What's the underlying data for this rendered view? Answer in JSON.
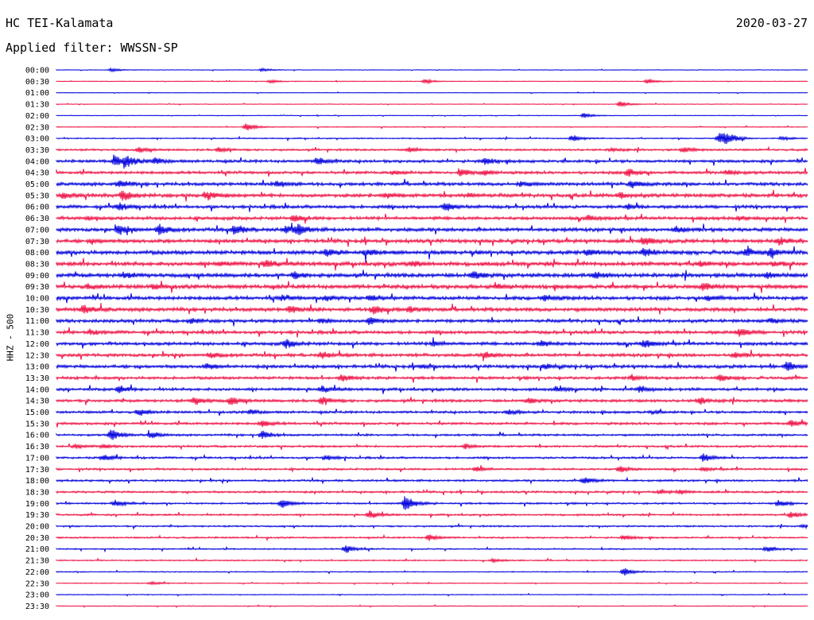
{
  "header": {
    "station": "HC TEI-Kalamata",
    "date": "2020-03-27",
    "filter_label": "Applied filter: WWSSN-SP"
  },
  "colors": {
    "even_trace": "#0000dd",
    "odd_trace": "#ee1144"
  },
  "chart_data": {
    "type": "line",
    "title": "",
    "ylabel": "HHZ - 500",
    "trace_interval_minutes": 30,
    "row_labels": [
      "00:00",
      "00:30",
      "01:00",
      "01:30",
      "02:00",
      "02:30",
      "03:00",
      "03:30",
      "04:00",
      "04:30",
      "05:00",
      "05:30",
      "06:00",
      "06:30",
      "07:00",
      "07:30",
      "08:00",
      "08:30",
      "09:00",
      "09:30",
      "10:00",
      "10:30",
      "11:00",
      "11:30",
      "12:00",
      "12:30",
      "13:00",
      "13:30",
      "14:00",
      "14:30",
      "15:00",
      "15:30",
      "16:00",
      "16:30",
      "17:00",
      "17:30",
      "18:00",
      "18:30",
      "19:00",
      "19:30",
      "20:00",
      "20:30",
      "21:00",
      "21:30",
      "22:00",
      "22:30",
      "23:00",
      "23:30"
    ],
    "noise_level": [
      0.3,
      0.3,
      0.3,
      0.3,
      0.3,
      0.4,
      0.6,
      1.0,
      1.4,
      1.4,
      1.6,
      1.8,
      1.6,
      1.6,
      1.8,
      1.8,
      2.0,
      2.0,
      2.0,
      2.0,
      1.8,
      1.8,
      1.6,
      1.6,
      1.6,
      1.6,
      1.6,
      1.4,
      1.4,
      1.4,
      1.2,
      1.2,
      1.0,
      1.0,
      1.0,
      1.0,
      1.0,
      1.0,
      0.9,
      0.9,
      0.8,
      0.8,
      0.7,
      0.6,
      0.5,
      0.4,
      0.4,
      0.4
    ],
    "events": [
      [
        [
          140,
          2
        ],
        [
          330,
          2
        ]
      ],
      [
        [
          340,
          2
        ],
        [
          535,
          3
        ],
        [
          815,
          3
        ]
      ],
      [],
      [
        [
          780,
          4
        ]
      ],
      [
        [
          735,
          3
        ]
      ],
      [
        [
          310,
          5
        ]
      ],
      [
        [
          720,
          4
        ],
        [
          905,
          8
        ],
        [
          915,
          6
        ],
        [
          985,
          2
        ]
      ],
      [
        [
          175,
          3
        ],
        [
          275,
          3
        ],
        [
          515,
          3
        ],
        [
          770,
          2
        ],
        [
          860,
          3
        ]
      ],
      [
        [
          145,
          7
        ],
        [
          160,
          6
        ],
        [
          195,
          4
        ],
        [
          400,
          5
        ],
        [
          610,
          4
        ]
      ],
      [
        [
          495,
          2
        ],
        [
          580,
          4
        ],
        [
          610,
          3
        ],
        [
          790,
          5
        ],
        [
          915,
          3
        ]
      ],
      [
        [
          150,
          4
        ],
        [
          350,
          4
        ],
        [
          655,
          3
        ],
        [
          795,
          5
        ]
      ],
      [
        [
          80,
          3
        ],
        [
          155,
          6
        ],
        [
          260,
          5
        ],
        [
          485,
          3
        ],
        [
          590,
          2
        ],
        [
          780,
          3
        ]
      ],
      [
        [
          150,
          5
        ],
        [
          560,
          5
        ],
        [
          790,
          3
        ]
      ],
      [
        [
          110,
          2
        ],
        [
          370,
          4
        ],
        [
          740,
          3
        ],
        [
          930,
          2
        ]
      ],
      [
        [
          150,
          6
        ],
        [
          200,
          6
        ],
        [
          295,
          6
        ],
        [
          360,
          5
        ],
        [
          375,
          5
        ],
        [
          850,
          4
        ]
      ],
      [
        [
          115,
          2
        ],
        [
          810,
          5
        ],
        [
          980,
          4
        ]
      ],
      [
        [
          410,
          4
        ],
        [
          460,
          4
        ],
        [
          740,
          4
        ],
        [
          810,
          5
        ],
        [
          940,
          4
        ],
        [
          970,
          5
        ]
      ],
      [
        [
          275,
          3
        ],
        [
          335,
          5
        ],
        [
          520,
          3
        ],
        [
          880,
          3
        ],
        [
          975,
          3
        ]
      ],
      [
        [
          155,
          3
        ],
        [
          370,
          4
        ],
        [
          595,
          5
        ],
        [
          750,
          3
        ],
        [
          965,
          3
        ]
      ],
      [
        [
          110,
          2
        ],
        [
          195,
          3
        ],
        [
          625,
          3
        ],
        [
          885,
          5
        ]
      ],
      [
        [
          355,
          3
        ],
        [
          410,
          3
        ],
        [
          465,
          4
        ],
        [
          685,
          4
        ],
        [
          890,
          3
        ]
      ],
      [
        [
          105,
          5
        ],
        [
          365,
          4
        ],
        [
          470,
          6
        ],
        [
          515,
          3
        ]
      ],
      [
        [
          240,
          3
        ],
        [
          405,
          3
        ],
        [
          465,
          5
        ],
        [
          970,
          3
        ]
      ],
      [
        [
          115,
          2
        ],
        [
          930,
          5
        ]
      ],
      [
        [
          360,
          5
        ],
        [
          545,
          3
        ],
        [
          680,
          4
        ],
        [
          810,
          5
        ]
      ],
      [
        [
          265,
          3
        ],
        [
          405,
          4
        ],
        [
          610,
          4
        ],
        [
          925,
          3
        ]
      ],
      [
        [
          260,
          3
        ],
        [
          530,
          2
        ],
        [
          685,
          3
        ],
        [
          990,
          6
        ]
      ],
      [
        [
          430,
          4
        ],
        [
          795,
          3
        ],
        [
          905,
          4
        ]
      ],
      [
        [
          150,
          4
        ],
        [
          405,
          4
        ],
        [
          700,
          3
        ],
        [
          805,
          4
        ]
      ],
      [
        [
          245,
          5
        ],
        [
          290,
          5
        ],
        [
          405,
          5
        ],
        [
          665,
          3
        ],
        [
          880,
          4
        ]
      ],
      [
        [
          175,
          4
        ],
        [
          315,
          3
        ],
        [
          640,
          3
        ],
        [
          820,
          2
        ]
      ],
      [
        [
          330,
          4
        ],
        [
          995,
          4
        ]
      ],
      [
        [
          140,
          7
        ],
        [
          190,
          4
        ],
        [
          330,
          5
        ]
      ],
      [
        [
          95,
          3
        ],
        [
          130,
          2
        ],
        [
          585,
          3
        ]
      ],
      [
        [
          130,
          4
        ],
        [
          410,
          3
        ],
        [
          885,
          5
        ]
      ],
      [
        [
          600,
          3
        ],
        [
          780,
          4
        ],
        [
          885,
          2
        ]
      ],
      [
        [
          735,
          5
        ]
      ],
      [
        [
          830,
          2
        ],
        [
          855,
          2
        ]
      ],
      [
        [
          145,
          4
        ],
        [
          355,
          6
        ],
        [
          510,
          10
        ],
        [
          980,
          4
        ]
      ],
      [
        [
          465,
          5
        ],
        [
          995,
          4
        ]
      ],
      [
        [
          1010,
          2
        ]
      ],
      [
        [
          540,
          4
        ],
        [
          785,
          3
        ]
      ],
      [
        [
          435,
          5
        ],
        [
          965,
          4
        ]
      ],
      [
        [
          620,
          2
        ]
      ],
      [
        [
          785,
          5
        ]
      ],
      [
        [
          190,
          2
        ]
      ],
      [],
      []
    ]
  }
}
